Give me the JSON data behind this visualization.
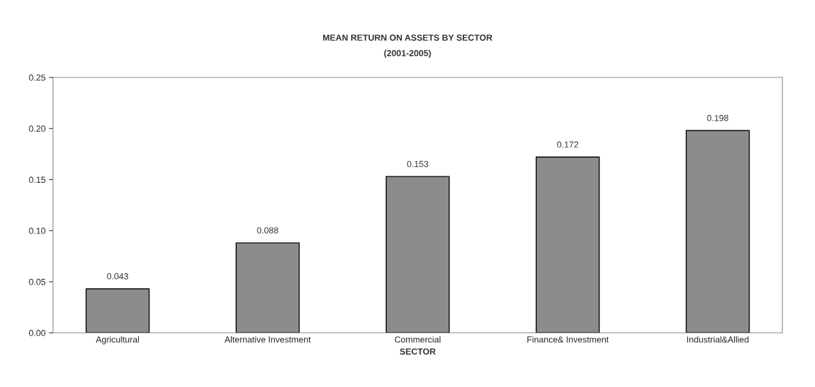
{
  "chart_data": {
    "type": "bar",
    "title": "MEAN RETURN ON ASSETS BY SECTOR",
    "subtitle": "(2001-2005)",
    "xlabel": "SECTOR",
    "categories": [
      "Agricultural",
      "Alternative Investment",
      "Commercial",
      "Finance& Investment",
      "Industrial&Allied"
    ],
    "values": [
      0.043,
      0.088,
      0.153,
      0.172,
      0.198
    ],
    "color": "#8c8c8c",
    "value_labels": [
      "0.043",
      "0.088",
      "0.153",
      "0.172",
      "0.198"
    ],
    "ylim": [
      0,
      0.25
    ],
    "yticks": [
      {
        "value": 0,
        "label": "0.00"
      },
      {
        "value": 0.05,
        "label": "0.05"
      },
      {
        "value": 0.1,
        "label": "0.10"
      },
      {
        "value": 0.15,
        "label": "0.15"
      },
      {
        "value": 0.2,
        "label": "0.20"
      },
      {
        "value": 0.25,
        "label": "0.25"
      }
    ],
    "grid": false
  }
}
